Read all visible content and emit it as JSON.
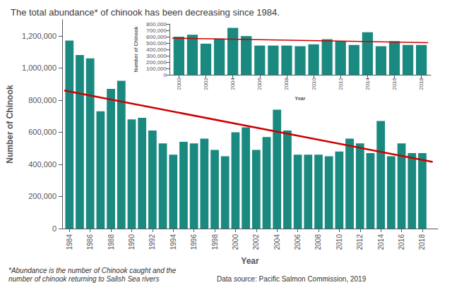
{
  "chart_data": [
    {
      "type": "bar",
      "title": "The total abundance* of chinook has been decreasing since 1984.",
      "xlabel": "Year",
      "ylabel": "Number of Chinook",
      "x": [
        1984,
        1985,
        1986,
        1987,
        1988,
        1989,
        1990,
        1991,
        1992,
        1993,
        1994,
        1995,
        1996,
        1997,
        1998,
        1999,
        2000,
        2001,
        2002,
        2003,
        2004,
        2005,
        2006,
        2007,
        2008,
        2009,
        2010,
        2011,
        2012,
        2013,
        2014,
        2015,
        2016,
        2017,
        2018
      ],
      "series": [
        {
          "type": "bar",
          "color": "#1a8a80",
          "values": [
            1170000,
            1080000,
            1060000,
            730000,
            870000,
            920000,
            680000,
            690000,
            610000,
            530000,
            460000,
            540000,
            530000,
            560000,
            490000,
            450000,
            600000,
            630000,
            490000,
            570000,
            740000,
            610000,
            460000,
            460000,
            460000,
            450000,
            480000,
            560000,
            530000,
            470000,
            670000,
            450000,
            530000,
            470000,
            470000
          ]
        },
        {
          "type": "line",
          "color": "#cc0000",
          "x": [
            1983.5,
            2019.0
          ],
          "values": [
            860000,
            415000
          ]
        }
      ],
      "xlim": [
        1983.3,
        2019.5
      ],
      "xticks": [
        1984,
        1986,
        1988,
        1990,
        1992,
        1994,
        1996,
        1998,
        2000,
        2002,
        2004,
        2006,
        2008,
        2010,
        2012,
        2014,
        2016,
        2018
      ],
      "ylim": [
        0,
        1300000
      ],
      "yticks": [
        0,
        {
          "value": 200000,
          "label": "200,000"
        },
        {
          "value": 400000,
          "label": "400,000"
        },
        {
          "value": 600000,
          "label": "600,000"
        },
        {
          "value": 800000,
          "label": "800,000"
        },
        {
          "value": 1000000,
          "label": "1,000,000"
        },
        {
          "value": 1200000,
          "label": "1,200,000"
        }
      ],
      "grid": false,
      "annotations": [
        "*Abundance is the number of Chinook caught and the\nnumber of chinook returning to Salish Sea rivers",
        "Data source: Pacific Salmon Commission, 2019"
      ]
    },
    {
      "type": "bar",
      "xlabel": "Year",
      "ylabel": "Number of Chinook",
      "x": [
        2000,
        2001,
        2002,
        2003,
        2004,
        2005,
        2006,
        2007,
        2008,
        2009,
        2010,
        2011,
        2012,
        2013,
        2014,
        2015,
        2016,
        2017,
        2018
      ],
      "series": [
        {
          "type": "bar",
          "color": "#1a8a80",
          "values": [
            600000,
            630000,
            490000,
            570000,
            740000,
            610000,
            460000,
            460000,
            460000,
            450000,
            480000,
            560000,
            530000,
            470000,
            670000,
            450000,
            530000,
            470000,
            470000
          ]
        },
        {
          "type": "line",
          "color": "#cc0000",
          "x": [
            1999.5,
            2018.5
          ],
          "values": [
            578000,
            505000
          ]
        }
      ],
      "xlim": [
        1999.3,
        2018.7
      ],
      "xticks": [
        2000,
        2002,
        2004,
        2006,
        2008,
        2010,
        2012,
        2014,
        2016,
        2018
      ],
      "ylim": [
        0,
        800000
      ],
      "yticks": [
        0,
        {
          "value": 100000,
          "label": "100,000"
        },
        {
          "value": 200000,
          "label": "200,000"
        },
        {
          "value": 300000,
          "label": "300,000"
        },
        {
          "value": 400000,
          "label": "400,000"
        },
        {
          "value": 500000,
          "label": "500,000"
        },
        {
          "value": 600000,
          "label": "600,000"
        },
        {
          "value": 700000,
          "label": "700,000"
        },
        {
          "value": 800000,
          "label": "800,000"
        }
      ],
      "grid": false
    }
  ]
}
